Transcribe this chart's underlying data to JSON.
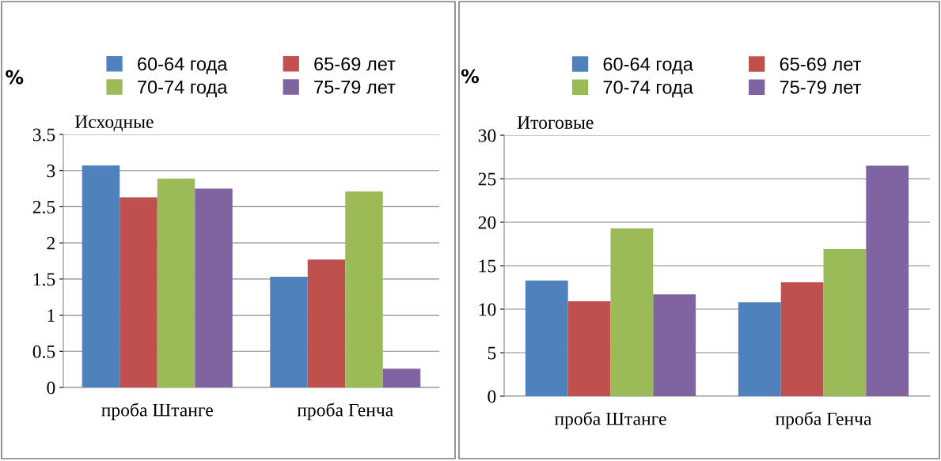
{
  "chart_data": [
    {
      "type": "bar",
      "title": "Исходные",
      "ylabel": "%",
      "categories": [
        "проба Штанге",
        "проба Генча"
      ],
      "ylim": [
        0,
        3.5
      ],
      "yticks": [
        0,
        0.5,
        1,
        1.5,
        2,
        2.5,
        3,
        3.5
      ],
      "grid": "y",
      "legend": "top",
      "series": [
        {
          "name": "60-64 года",
          "color": "#4f81bd",
          "values": [
            3.07,
            1.53
          ]
        },
        {
          "name": "65-69 лет",
          "color": "#c0504d",
          "values": [
            2.63,
            1.77
          ]
        },
        {
          "name": "70-74 года",
          "color": "#9bbb59",
          "values": [
            2.89,
            2.71
          ]
        },
        {
          "name": "75-79 лет",
          "color": "#8064a2",
          "values": [
            2.75,
            0.26
          ]
        }
      ]
    },
    {
      "type": "bar",
      "title": "Итоговые",
      "ylabel": "%",
      "categories": [
        "проба Штанге",
        "проба Генча"
      ],
      "ylim": [
        0,
        30
      ],
      "yticks": [
        0,
        5,
        10,
        15,
        20,
        25,
        30
      ],
      "grid": "y",
      "legend": "top",
      "series": [
        {
          "name": "60-64 года",
          "color": "#4f81bd",
          "values": [
            13.3,
            10.8
          ]
        },
        {
          "name": "65-69 лет",
          "color": "#c0504d",
          "values": [
            10.9,
            13.1
          ]
        },
        {
          "name": "70-74 года",
          "color": "#9bbb59",
          "values": [
            19.3,
            16.9
          ]
        },
        {
          "name": "75-79 лет",
          "color": "#8064a2",
          "values": [
            11.7,
            26.5
          ]
        }
      ]
    }
  ]
}
